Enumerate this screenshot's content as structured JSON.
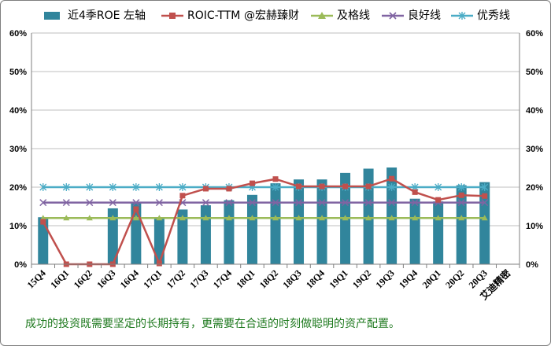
{
  "legend": {
    "roe": "近4季ROE 左轴",
    "roic": "ROIC-TTM",
    "watermark": "@宏赫臻财",
    "pass": "及格线",
    "good": "良好线",
    "excellent": "优秀线"
  },
  "colors": {
    "roe": "#31859c",
    "roic": "#c0504d",
    "pass": "#9bbb59",
    "good": "#8064a2",
    "excellent": "#4bacc6",
    "caption": "#1f7a1f"
  },
  "caption": "成功的投资既需要坚定的长期持有，更需要在合适的时刻做聪明的资产配置。",
  "chart_data": {
    "type": "bar",
    "categories": [
      "15Q4",
      "16Q1",
      "16Q2",
      "16Q3",
      "16Q4",
      "17Q1",
      "17Q2",
      "17Q3",
      "17Q4",
      "18Q1",
      "18Q2",
      "18Q3",
      "18Q4",
      "19Q1",
      "19Q2",
      "19Q3",
      "19Q4",
      "20Q1",
      "20Q2",
      "20Q3",
      "艾迪精密"
    ],
    "series": [
      {
        "name": "近4季ROE 左轴",
        "type": "bar",
        "values": [
          12.2,
          null,
          null,
          14.5,
          16.2,
          12.0,
          14.2,
          15.3,
          16.6,
          18.0,
          21.0,
          22.0,
          22.0,
          23.7,
          24.8,
          25.1,
          17.0,
          16.3,
          20.5,
          21.3,
          null
        ]
      },
      {
        "name": "ROIC-TTM",
        "type": "line",
        "values": [
          11.0,
          0.0,
          0.0,
          0.0,
          14.3,
          0.2,
          17.8,
          19.6,
          19.6,
          21.0,
          22.1,
          20.2,
          20.2,
          20.2,
          20.2,
          22.2,
          18.7,
          16.7,
          17.9,
          17.7,
          null
        ]
      },
      {
        "name": "及格线",
        "type": "line",
        "values": [
          12,
          12,
          12,
          12,
          12,
          12,
          12,
          12,
          12,
          12,
          12,
          12,
          12,
          12,
          12,
          12,
          12,
          12,
          12,
          12,
          null
        ]
      },
      {
        "name": "良好线",
        "type": "line",
        "values": [
          16,
          16,
          16,
          16,
          16,
          16,
          16,
          16,
          16,
          16,
          16,
          16,
          16,
          16,
          16,
          16,
          16,
          16,
          16,
          16,
          null
        ]
      },
      {
        "name": "优秀线",
        "type": "line",
        "values": [
          20,
          20,
          20,
          20,
          20,
          20,
          20,
          20,
          20,
          20,
          20,
          20,
          20,
          20,
          20,
          20,
          20,
          20,
          20,
          20,
          null
        ]
      }
    ],
    "yticks": [
      "0%",
      "10%",
      "20%",
      "30%",
      "40%",
      "50%",
      "60%"
    ],
    "ylim": [
      0,
      60
    ],
    "grid": true,
    "legend_position": "top"
  }
}
